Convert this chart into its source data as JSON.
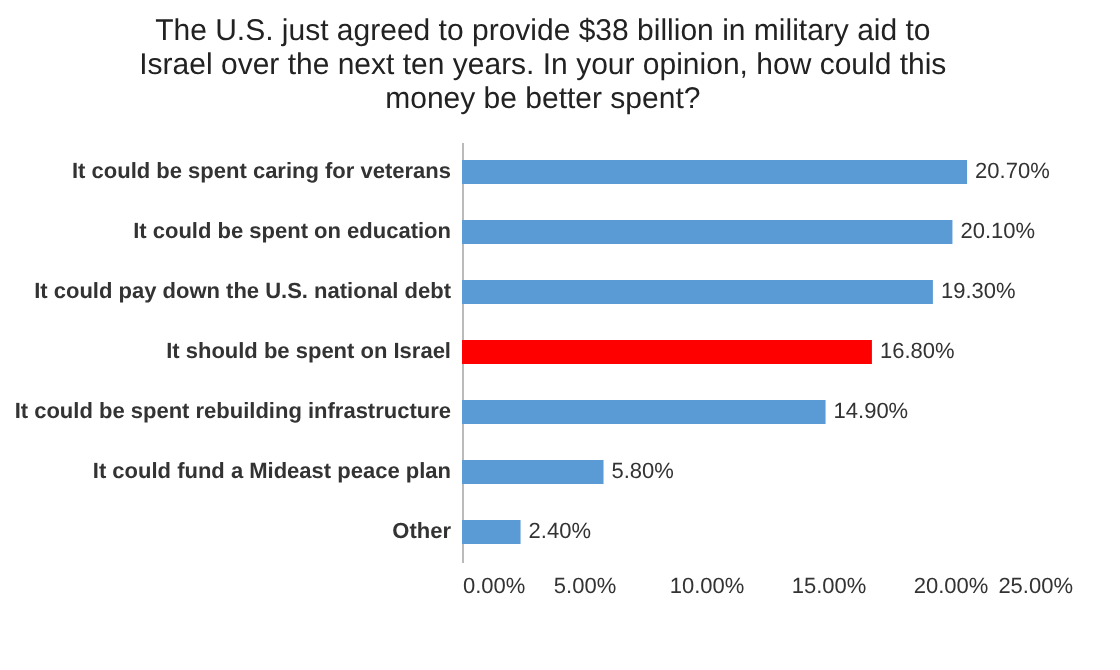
{
  "chart_data": {
    "type": "bar",
    "orientation": "horizontal",
    "title": "The U.S. just agreed to provide $38 billion in military aid to Israel over the next ten years. In your opinion, how could this money be better spent?",
    "categories": [
      "It could be spent caring for veterans",
      "It could be spent on education",
      "It could pay down the U.S. national debt",
      "It should be spent on Israel",
      "It could be spent rebuilding infrastructure",
      "It could fund a Mideast peace plan",
      "Other"
    ],
    "values": [
      20.7,
      20.1,
      19.3,
      16.8,
      14.9,
      5.8,
      2.4
    ],
    "value_labels": [
      "20.70%",
      "20.10%",
      "19.30%",
      "16.80%",
      "14.90%",
      "5.80%",
      "2.40%"
    ],
    "colors": [
      "#5b9bd5",
      "#5b9bd5",
      "#5b9bd5",
      "#ff0000",
      "#5b9bd5",
      "#5b9bd5",
      "#5b9bd5"
    ],
    "xlim": [
      0,
      25
    ],
    "xticks": [
      {
        "value": 0,
        "label": "0.00%"
      },
      {
        "value": 5,
        "label": "5.00%"
      },
      {
        "value": 10,
        "label": "10.00%"
      },
      {
        "value": 15,
        "label": "15.00%"
      },
      {
        "value": 20,
        "label": "20.00%"
      },
      {
        "value": 25,
        "label": "25.00%"
      }
    ],
    "grid": false
  }
}
